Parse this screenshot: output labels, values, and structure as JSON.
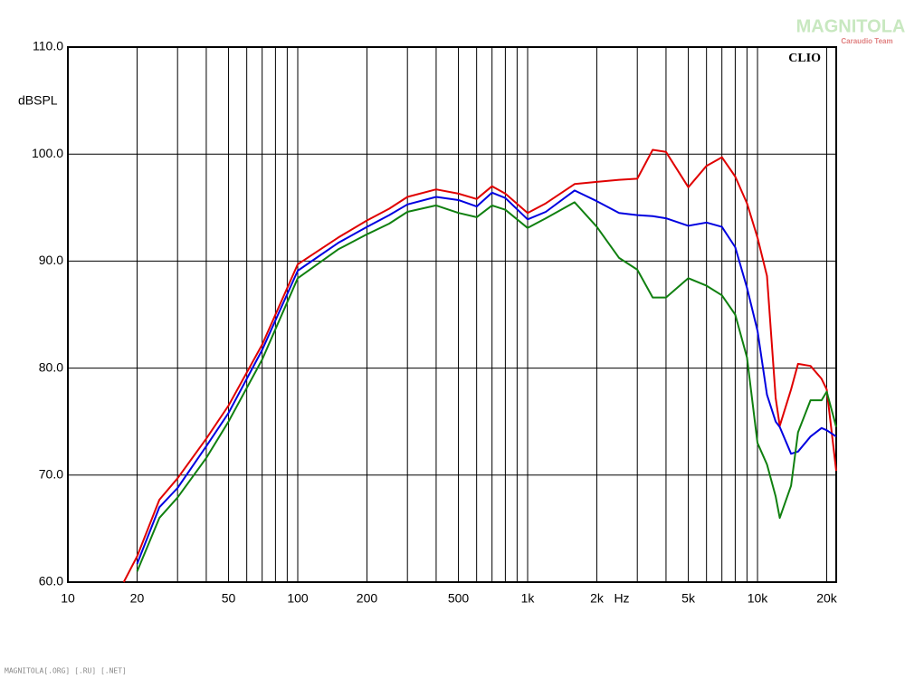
{
  "chart_data": {
    "type": "line",
    "x_scale": "log",
    "grid": true,
    "y_label": "dBSPL",
    "x_unit": "Hz",
    "brand": "CLIO",
    "watermark": "MAGNITOLA",
    "watermark_sub": "Caraudio Team",
    "footer": "MAGNITOLA[.ORG] [.RU] [.NET]",
    "x": [
      17.5,
      20,
      25,
      30,
      40,
      50,
      70,
      100,
      150,
      200,
      250,
      300,
      400,
      500,
      600,
      700,
      800,
      1000,
      1200,
      1600,
      2000,
      2500,
      3000,
      3500,
      4000,
      5000,
      6000,
      7000,
      8000,
      9000,
      10000,
      11000,
      12000,
      12500,
      14000,
      15000,
      17000,
      19000,
      20000,
      22000
    ],
    "series": [
      {
        "name": "red",
        "color": "#e00000",
        "values": [
          60,
          62.4,
          67.7,
          69.7,
          73.4,
          76.5,
          82.2,
          89.7,
          92.2,
          93.8,
          94.9,
          96.0,
          96.7,
          96.3,
          95.8,
          97.0,
          96.3,
          94.5,
          95.4,
          97.2,
          97.4,
          97.6,
          97.7,
          100.4,
          100.2,
          96.9,
          98.9,
          99.7,
          97.9,
          95.4,
          92.2,
          88.6,
          77.2,
          74.6,
          78.0,
          80.4,
          80.2,
          79.0,
          78.0,
          70.4
        ]
      },
      {
        "name": "blue",
        "color": "#0000e0",
        "values": [
          null,
          61.7,
          67.0,
          68.8,
          72.7,
          75.8,
          81.7,
          89.1,
          91.7,
          93.2,
          94.3,
          95.3,
          96.0,
          95.7,
          95.1,
          96.4,
          95.9,
          93.9,
          94.6,
          96.6,
          95.6,
          94.5,
          94.3,
          94.2,
          94.0,
          93.3,
          93.6,
          93.2,
          91.3,
          87.5,
          83.5,
          77.5,
          75.0,
          74.5,
          72.0,
          72.2,
          73.6,
          74.4,
          74.2,
          73.6
        ]
      },
      {
        "name": "green",
        "color": "#108010",
        "values": [
          null,
          61.0,
          66.0,
          67.9,
          71.6,
          75.0,
          80.8,
          88.4,
          91.1,
          92.5,
          93.5,
          94.6,
          95.2,
          94.5,
          94.1,
          95.2,
          94.8,
          93.1,
          94.0,
          95.5,
          93.2,
          90.3,
          89.2,
          86.6,
          86.6,
          88.4,
          87.7,
          86.8,
          85.0,
          81.0,
          73.0,
          71.0,
          68.0,
          66.0,
          69.0,
          74.0,
          77.0,
          77.0,
          77.8,
          74.5
        ]
      }
    ],
    "xlim": [
      10,
      22000
    ],
    "xticks": [
      10,
      20,
      50,
      100,
      200,
      500,
      {
        "value": 1000,
        "label": "1k"
      },
      {
        "value": 2000,
        "label": "2k"
      },
      {
        "value": 5000,
        "label": "5k"
      },
      {
        "value": 10000,
        "label": "10k"
      },
      {
        "value": 20000,
        "label": "20k"
      }
    ],
    "xminor": [
      30,
      40,
      60,
      70,
      80,
      90,
      300,
      400,
      600,
      700,
      800,
      900,
      3000,
      4000,
      6000,
      7000,
      8000,
      9000
    ],
    "ylim": [
      60,
      110
    ],
    "yticks": [
      {
        "value": 60,
        "label": "60.0"
      },
      {
        "value": 70,
        "label": "70.0"
      },
      {
        "value": 80,
        "label": "80.0"
      },
      {
        "value": 90,
        "label": "90.0"
      },
      {
        "value": 100,
        "label": "100.0"
      },
      {
        "value": 110,
        "label": "110.0"
      }
    ]
  }
}
